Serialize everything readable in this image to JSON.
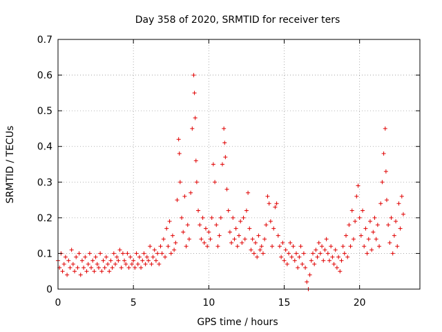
{
  "chart_data": {
    "type": "scatter",
    "title": "Day 358 of 2020, SRMTID for receiver ters",
    "xlabel": "GPS time / hours",
    "ylabel": "SRMTID / TECUs",
    "xlim": [
      0,
      24
    ],
    "ylim": [
      0,
      0.7
    ],
    "x_ticks": [
      0,
      5,
      10,
      15,
      20
    ],
    "y_ticks": [
      0,
      0.1,
      0.2,
      0.3,
      0.4,
      0.5,
      0.6,
      0.7
    ],
    "grid": true,
    "marker": "+",
    "series_color": "#e00000",
    "series": [
      {
        "name": "SRMTID",
        "points": [
          [
            0.0,
            0.08
          ],
          [
            0.1,
            0.06
          ],
          [
            0.2,
            0.1
          ],
          [
            0.3,
            0.05
          ],
          [
            0.4,
            0.07
          ],
          [
            0.5,
            0.09
          ],
          [
            0.6,
            0.04
          ],
          [
            0.7,
            0.08
          ],
          [
            0.8,
            0.06
          ],
          [
            0.9,
            0.11
          ],
          [
            1.0,
            0.07
          ],
          [
            1.1,
            0.05
          ],
          [
            1.2,
            0.09
          ],
          [
            1.3,
            0.06
          ],
          [
            1.4,
            0.1
          ],
          [
            1.5,
            0.04
          ],
          [
            1.6,
            0.08
          ],
          [
            1.7,
            0.06
          ],
          [
            1.8,
            0.09
          ],
          [
            1.9,
            0.05
          ],
          [
            2.0,
            0.07
          ],
          [
            2.1,
            0.1
          ],
          [
            2.2,
            0.06
          ],
          [
            2.3,
            0.08
          ],
          [
            2.4,
            0.05
          ],
          [
            2.5,
            0.09
          ],
          [
            2.6,
            0.07
          ],
          [
            2.7,
            0.06
          ],
          [
            2.8,
            0.1
          ],
          [
            2.9,
            0.05
          ],
          [
            3.0,
            0.08
          ],
          [
            3.1,
            0.06
          ],
          [
            3.2,
            0.09
          ],
          [
            3.3,
            0.07
          ],
          [
            3.4,
            0.05
          ],
          [
            3.5,
            0.08
          ],
          [
            3.6,
            0.06
          ],
          [
            3.7,
            0.1
          ],
          [
            3.8,
            0.07
          ],
          [
            3.9,
            0.09
          ],
          [
            4.0,
            0.08
          ],
          [
            4.1,
            0.11
          ],
          [
            4.2,
            0.06
          ],
          [
            4.3,
            0.1
          ],
          [
            4.4,
            0.08
          ],
          [
            4.5,
            0.07
          ],
          [
            4.6,
            0.1
          ],
          [
            4.7,
            0.06
          ],
          [
            4.8,
            0.09
          ],
          [
            4.9,
            0.07
          ],
          [
            5.0,
            0.08
          ],
          [
            5.1,
            0.06
          ],
          [
            5.2,
            0.1
          ],
          [
            5.3,
            0.07
          ],
          [
            5.4,
            0.09
          ],
          [
            5.5,
            0.06
          ],
          [
            5.6,
            0.08
          ],
          [
            5.7,
            0.1
          ],
          [
            5.8,
            0.07
          ],
          [
            5.9,
            0.09
          ],
          [
            6.0,
            0.08
          ],
          [
            6.1,
            0.12
          ],
          [
            6.2,
            0.07
          ],
          [
            6.3,
            0.09
          ],
          [
            6.4,
            0.11
          ],
          [
            6.5,
            0.08
          ],
          [
            6.6,
            0.1
          ],
          [
            6.7,
            0.07
          ],
          [
            6.8,
            0.12
          ],
          [
            6.9,
            0.1
          ],
          [
            7.0,
            0.14
          ],
          [
            7.1,
            0.09
          ],
          [
            7.2,
            0.17
          ],
          [
            7.3,
            0.12
          ],
          [
            7.4,
            0.19
          ],
          [
            7.5,
            0.1
          ],
          [
            7.6,
            0.15
          ],
          [
            7.7,
            0.11
          ],
          [
            7.8,
            0.13
          ],
          [
            7.9,
            0.25
          ],
          [
            8.0,
            0.42
          ],
          [
            8.05,
            0.38
          ],
          [
            8.1,
            0.3
          ],
          [
            8.2,
            0.2
          ],
          [
            8.3,
            0.16
          ],
          [
            8.4,
            0.26
          ],
          [
            8.5,
            0.12
          ],
          [
            8.6,
            0.18
          ],
          [
            8.7,
            0.14
          ],
          [
            8.8,
            0.27
          ],
          [
            8.9,
            0.45
          ],
          [
            9.0,
            0.6
          ],
          [
            9.05,
            0.55
          ],
          [
            9.1,
            0.48
          ],
          [
            9.15,
            0.36
          ],
          [
            9.2,
            0.3
          ],
          [
            9.3,
            0.22
          ],
          [
            9.4,
            0.18
          ],
          [
            9.5,
            0.14
          ],
          [
            9.6,
            0.2
          ],
          [
            9.7,
            0.13
          ],
          [
            9.8,
            0.17
          ],
          [
            9.9,
            0.12
          ],
          [
            10.0,
            0.16
          ],
          [
            10.1,
            0.14
          ],
          [
            10.2,
            0.2
          ],
          [
            10.3,
            0.35
          ],
          [
            10.4,
            0.3
          ],
          [
            10.5,
            0.18
          ],
          [
            10.6,
            0.12
          ],
          [
            10.7,
            0.15
          ],
          [
            10.8,
            0.2
          ],
          [
            10.9,
            0.35
          ],
          [
            11.0,
            0.45
          ],
          [
            11.05,
            0.41
          ],
          [
            11.1,
            0.37
          ],
          [
            11.2,
            0.28
          ],
          [
            11.3,
            0.22
          ],
          [
            11.4,
            0.16
          ],
          [
            11.5,
            0.13
          ],
          [
            11.6,
            0.2
          ],
          [
            11.7,
            0.14
          ],
          [
            11.8,
            0.17
          ],
          [
            11.9,
            0.12
          ],
          [
            12.0,
            0.15
          ],
          [
            12.1,
            0.19
          ],
          [
            12.2,
            0.13
          ],
          [
            12.3,
            0.2
          ],
          [
            12.4,
            0.14
          ],
          [
            12.5,
            0.22
          ],
          [
            12.6,
            0.27
          ],
          [
            12.7,
            0.17
          ],
          [
            12.8,
            0.11
          ],
          [
            12.9,
            0.14
          ],
          [
            13.0,
            0.1
          ],
          [
            13.1,
            0.13
          ],
          [
            13.2,
            0.09
          ],
          [
            13.3,
            0.15
          ],
          [
            13.4,
            0.11
          ],
          [
            13.5,
            0.12
          ],
          [
            13.6,
            0.1
          ],
          [
            13.7,
            0.14
          ],
          [
            13.8,
            0.18
          ],
          [
            13.9,
            0.26
          ],
          [
            14.0,
            0.24
          ],
          [
            14.1,
            0.19
          ],
          [
            14.2,
            0.12
          ],
          [
            14.3,
            0.17
          ],
          [
            14.4,
            0.23
          ],
          [
            14.5,
            0.24
          ],
          [
            14.6,
            0.15
          ],
          [
            14.7,
            0.12
          ],
          [
            14.8,
            0.09
          ],
          [
            14.9,
            0.13
          ],
          [
            15.0,
            0.08
          ],
          [
            15.1,
            0.11
          ],
          [
            15.2,
            0.07
          ],
          [
            15.3,
            0.1
          ],
          [
            15.4,
            0.13
          ],
          [
            15.5,
            0.09
          ],
          [
            15.6,
            0.12
          ],
          [
            15.7,
            0.08
          ],
          [
            15.8,
            0.1
          ],
          [
            15.9,
            0.06
          ],
          [
            16.0,
            0.09
          ],
          [
            16.1,
            0.12
          ],
          [
            16.2,
            0.07
          ],
          [
            16.3,
            0.1
          ],
          [
            16.4,
            0.06
          ],
          [
            16.5,
            0.02
          ],
          [
            16.6,
            0.0
          ],
          [
            16.7,
            0.04
          ],
          [
            16.8,
            0.08
          ],
          [
            16.9,
            0.1
          ],
          [
            17.0,
            0.07
          ],
          [
            17.1,
            0.11
          ],
          [
            17.2,
            0.09
          ],
          [
            17.3,
            0.13
          ],
          [
            17.4,
            0.1
          ],
          [
            17.5,
            0.12
          ],
          [
            17.6,
            0.08
          ],
          [
            17.7,
            0.11
          ],
          [
            17.8,
            0.14
          ],
          [
            17.9,
            0.1
          ],
          [
            18.0,
            0.08
          ],
          [
            18.1,
            0.12
          ],
          [
            18.2,
            0.09
          ],
          [
            18.3,
            0.07
          ],
          [
            18.4,
            0.11
          ],
          [
            18.5,
            0.06
          ],
          [
            18.6,
            0.09
          ],
          [
            18.7,
            0.05
          ],
          [
            18.8,
            0.08
          ],
          [
            18.9,
            0.12
          ],
          [
            19.0,
            0.1
          ],
          [
            19.1,
            0.15
          ],
          [
            19.2,
            0.09
          ],
          [
            19.3,
            0.18
          ],
          [
            19.4,
            0.12
          ],
          [
            19.5,
            0.22
          ],
          [
            19.6,
            0.14
          ],
          [
            19.7,
            0.19
          ],
          [
            19.8,
            0.26
          ],
          [
            19.9,
            0.29
          ],
          [
            20.0,
            0.2
          ],
          [
            20.1,
            0.15
          ],
          [
            20.2,
            0.22
          ],
          [
            20.3,
            0.12
          ],
          [
            20.4,
            0.17
          ],
          [
            20.5,
            0.1
          ],
          [
            20.6,
            0.14
          ],
          [
            20.7,
            0.19
          ],
          [
            20.8,
            0.11
          ],
          [
            20.9,
            0.16
          ],
          [
            21.0,
            0.2
          ],
          [
            21.1,
            0.14
          ],
          [
            21.2,
            0.18
          ],
          [
            21.3,
            0.12
          ],
          [
            21.4,
            0.24
          ],
          [
            21.5,
            0.3
          ],
          [
            21.6,
            0.38
          ],
          [
            21.7,
            0.45
          ],
          [
            21.75,
            0.33
          ],
          [
            21.8,
            0.25
          ],
          [
            21.9,
            0.18
          ],
          [
            22.0,
            0.13
          ],
          [
            22.1,
            0.2
          ],
          [
            22.2,
            0.1
          ],
          [
            22.3,
            0.15
          ],
          [
            22.4,
            0.19
          ],
          [
            22.5,
            0.12
          ],
          [
            22.6,
            0.24
          ],
          [
            22.7,
            0.17
          ],
          [
            22.8,
            0.26
          ],
          [
            22.9,
            0.21
          ]
        ]
      }
    ]
  }
}
